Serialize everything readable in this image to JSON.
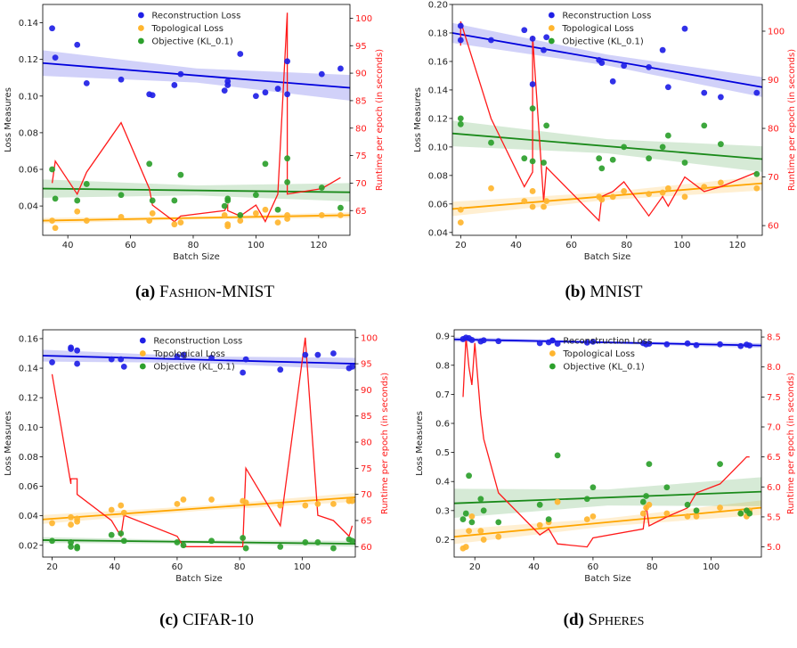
{
  "colors": {
    "reconstruction": "#1f1fe6",
    "topological": "#ffb52e",
    "objective": "#2ca02c",
    "runtime": "#ff1a1a",
    "recon_line": "#0000dd",
    "topo_line": "#ffa500",
    "obj_line": "#1a8a1a"
  },
  "chart_data": [
    {
      "type": "scatter",
      "caption_letter": "(a)",
      "caption_name": "Fashion-MNIST",
      "xlabel": "Batch Size",
      "ylabel": "Loss Measures",
      "y2label": "Runtime per epoch (in seconds)",
      "xlim": [
        32,
        130
      ],
      "ylim": [
        0.024,
        0.15
      ],
      "y2lim": [
        60.5,
        102.5
      ],
      "xticks": [
        40,
        60,
        80,
        100,
        120
      ],
      "yticks": [
        0.04,
        0.06,
        0.08,
        0.1,
        0.12,
        0.14
      ],
      "y2ticks": [
        65,
        70,
        75,
        80,
        85,
        90,
        95,
        100
      ],
      "legend": [
        "Reconstruction Loss",
        "Topological Loss",
        "Objective (KL_0.1)"
      ],
      "legend_position": "top-center",
      "series": [
        {
          "name": "Reconstruction Loss",
          "x": [
            35,
            36,
            43,
            46,
            57,
            66,
            67,
            74,
            76,
            90,
            91,
            91,
            95,
            100,
            103,
            107,
            110,
            110,
            121,
            127
          ],
          "y": [
            0.137,
            0.121,
            0.128,
            0.107,
            0.109,
            0.101,
            0.1005,
            0.106,
            0.112,
            0.103,
            0.106,
            0.108,
            0.123,
            0.1,
            0.102,
            0.104,
            0.101,
            0.119,
            0.112,
            0.115
          ]
        },
        {
          "name": "Topological Loss",
          "x": [
            35,
            36,
            43,
            46,
            57,
            66,
            67,
            74,
            76,
            90,
            91,
            91,
            95,
            100,
            103,
            107,
            110,
            110,
            121,
            127
          ],
          "y": [
            0.032,
            0.028,
            0.037,
            0.032,
            0.034,
            0.032,
            0.036,
            0.03,
            0.031,
            0.035,
            0.03,
            0.029,
            0.032,
            0.036,
            0.038,
            0.031,
            0.033,
            0.035,
            0.035,
            0.035
          ]
        },
        {
          "name": "Objective (KL_0.1)",
          "x": [
            35,
            36,
            43,
            46,
            57,
            66,
            67,
            74,
            76,
            90,
            91,
            91,
            95,
            100,
            103,
            107,
            110,
            110,
            121,
            127
          ],
          "y": [
            0.06,
            0.044,
            0.043,
            0.052,
            0.046,
            0.063,
            0.043,
            0.043,
            0.057,
            0.04,
            0.044,
            0.043,
            0.035,
            0.046,
            0.063,
            0.038,
            0.066,
            0.053,
            0.05,
            0.039
          ]
        }
      ],
      "fits": [
        {
          "name": "Reconstruction Loss",
          "x": [
            32,
            130
          ],
          "y": [
            0.118,
            0.1045
          ],
          "ci": 0.007
        },
        {
          "name": "Topological Loss",
          "x": [
            32,
            130
          ],
          "y": [
            0.032,
            0.035
          ],
          "ci": 0.0015
        },
        {
          "name": "Objective (KL_0.1)",
          "x": [
            32,
            130
          ],
          "y": [
            0.0495,
            0.0475
          ],
          "ci": 0.005
        }
      ],
      "runtime": {
        "x": [
          35,
          36,
          43,
          46,
          57,
          66,
          67,
          74,
          76,
          90,
          91,
          91,
          95,
          100,
          103,
          107,
          110,
          110,
          121,
          127
        ],
        "y": [
          70,
          74,
          68,
          72,
          81,
          69,
          66,
          63,
          64,
          65,
          66,
          65,
          64,
          66,
          63,
          68,
          101,
          68,
          69,
          71
        ]
      }
    },
    {
      "type": "scatter",
      "caption_letter": "(b)",
      "caption_name": "MNIST",
      "xlabel": "Batch Size",
      "ylabel": "Loss Measures",
      "y2label": "Runtime per epoch (in seconds)",
      "xlim": [
        17,
        129
      ],
      "ylim": [
        0.038,
        0.2
      ],
      "y2lim": [
        58,
        105.5
      ],
      "xticks": [
        20,
        40,
        60,
        80,
        100,
        120
      ],
      "yticks": [
        0.04,
        0.06,
        0.08,
        0.1,
        0.12,
        0.14,
        0.16,
        0.18,
        0.2
      ],
      "y2ticks": [
        60,
        70,
        80,
        90,
        100
      ],
      "legend": [
        "Reconstruction Loss",
        "Topological Loss",
        "Objective (KL_0.1)"
      ],
      "legend_position": "top-center",
      "series": [
        {
          "name": "Reconstruction Loss",
          "x": [
            20,
            20,
            31,
            43,
            46,
            46,
            50,
            51,
            70,
            71,
            75,
            79,
            88,
            93,
            95,
            101,
            108,
            114,
            127
          ],
          "y": [
            0.185,
            0.175,
            0.175,
            0.182,
            0.176,
            0.144,
            0.168,
            0.177,
            0.161,
            0.159,
            0.146,
            0.157,
            0.156,
            0.168,
            0.142,
            0.183,
            0.138,
            0.135,
            0.138
          ]
        },
        {
          "name": "Topological Loss",
          "x": [
            20,
            20,
            31,
            43,
            46,
            46,
            50,
            51,
            70,
            71,
            75,
            79,
            88,
            93,
            95,
            101,
            108,
            114,
            127
          ],
          "y": [
            0.056,
            0.047,
            0.071,
            0.062,
            0.069,
            0.058,
            0.058,
            0.062,
            0.065,
            0.063,
            0.065,
            0.069,
            0.067,
            0.068,
            0.071,
            0.065,
            0.072,
            0.075,
            0.071
          ]
        },
        {
          "name": "Objective (KL_0.1)",
          "x": [
            20,
            20,
            31,
            43,
            46,
            46,
            50,
            51,
            70,
            71,
            75,
            79,
            88,
            93,
            95,
            101,
            108,
            114,
            127
          ],
          "y": [
            0.12,
            0.116,
            0.103,
            0.092,
            0.127,
            0.09,
            0.089,
            0.115,
            0.092,
            0.085,
            0.091,
            0.1,
            0.092,
            0.1,
            0.108,
            0.089,
            0.115,
            0.102,
            0.081
          ]
        }
      ],
      "fits": [
        {
          "name": "Reconstruction Loss",
          "x": [
            17,
            129
          ],
          "y": [
            0.18,
            0.142
          ],
          "ci": 0.007
        },
        {
          "name": "Topological Loss",
          "x": [
            17,
            129
          ],
          "y": [
            0.0565,
            0.0745
          ],
          "ci": 0.005
        },
        {
          "name": "Objective (KL_0.1)",
          "x": [
            17,
            129
          ],
          "y": [
            0.1095,
            0.0915
          ],
          "ci": 0.009
        }
      ],
      "runtime": {
        "x": [
          20,
          20,
          31,
          43,
          46,
          46,
          50,
          51,
          70,
          71,
          75,
          79,
          88,
          93,
          95,
          101,
          108,
          114,
          127
        ],
        "y": [
          97,
          102,
          82,
          68,
          71,
          99,
          65,
          72,
          61,
          66,
          67,
          69,
          62,
          66,
          64,
          70,
          67,
          68,
          71
        ]
      }
    },
    {
      "type": "scatter",
      "caption_letter": "(c)",
      "caption_name": "CIFAR-10",
      "xlabel": "Batch Size",
      "ylabel": "Loss Measures",
      "y2label": "Runtime per epoch (in seconds)",
      "xlim": [
        17,
        117
      ],
      "ylim": [
        0.012,
        0.166
      ],
      "y2lim": [
        58,
        101.5
      ],
      "xticks": [
        20,
        40,
        60,
        80,
        100
      ],
      "yticks": [
        0.02,
        0.04,
        0.06,
        0.08,
        0.1,
        0.12,
        0.14,
        0.16
      ],
      "y2ticks": [
        60,
        65,
        70,
        75,
        80,
        85,
        90,
        95,
        100
      ],
      "legend": [
        "Reconstruction Loss",
        "Topological Loss",
        "Objective (KL_0.1)"
      ],
      "legend_position": "top-center",
      "series": [
        {
          "name": "Reconstruction Loss",
          "x": [
            20,
            26,
            26,
            28,
            28,
            39,
            42,
            43,
            60,
            62,
            71,
            81,
            82,
            93,
            101,
            105,
            110,
            115,
            116
          ],
          "y": [
            0.144,
            0.154,
            0.153,
            0.152,
            0.143,
            0.146,
            0.146,
            0.141,
            0.148,
            0.149,
            0.147,
            0.137,
            0.146,
            0.139,
            0.149,
            0.149,
            0.15,
            0.14,
            0.141
          ]
        },
        {
          "name": "Topological Loss",
          "x": [
            20,
            26,
            26,
            28,
            28,
            39,
            42,
            43,
            60,
            62,
            71,
            81,
            82,
            93,
            101,
            105,
            110,
            115,
            116
          ],
          "y": [
            0.035,
            0.034,
            0.039,
            0.036,
            0.038,
            0.044,
            0.047,
            0.042,
            0.048,
            0.051,
            0.051,
            0.05,
            0.049,
            0.047,
            0.047,
            0.048,
            0.048,
            0.05,
            0.05
          ]
        },
        {
          "name": "Objective (KL_0.1)",
          "x": [
            20,
            26,
            26,
            28,
            28,
            39,
            42,
            43,
            60,
            62,
            71,
            81,
            82,
            93,
            101,
            105,
            110,
            115,
            116
          ],
          "y": [
            0.023,
            0.022,
            0.019,
            0.019,
            0.018,
            0.027,
            0.028,
            0.023,
            0.022,
            0.02,
            0.023,
            0.025,
            0.018,
            0.019,
            0.022,
            0.022,
            0.018,
            0.024,
            0.023
          ]
        }
      ],
      "fits": [
        {
          "name": "Reconstruction Loss",
          "x": [
            17,
            117
          ],
          "y": [
            0.1485,
            0.143
          ],
          "ci": 0.004
        },
        {
          "name": "Topological Loss",
          "x": [
            17,
            117
          ],
          "y": [
            0.0375,
            0.0525
          ],
          "ci": 0.003
        },
        {
          "name": "Objective (KL_0.1)",
          "x": [
            17,
            117
          ],
          "y": [
            0.0235,
            0.021
          ],
          "ci": 0.002
        }
      ],
      "runtime": {
        "x": [
          20,
          26,
          26,
          28,
          28,
          39,
          42,
          43,
          60,
          62,
          71,
          81,
          82,
          93,
          101,
          105,
          110,
          115,
          116
        ],
        "y": [
          93,
          72,
          73,
          73,
          70,
          65,
          62,
          66,
          62,
          60,
          60,
          60,
          75,
          64,
          100,
          66,
          65,
          62,
          64
        ]
      }
    },
    {
      "type": "scatter",
      "caption_letter": "(d)",
      "caption_name": "Spheres",
      "xlabel": "Batch Size",
      "ylabel": "Loss Measures",
      "y2label": "Runtime per epoch (in seconds)",
      "xlim": [
        13,
        117
      ],
      "ylim": [
        0.14,
        0.922
      ],
      "y2lim": [
        4.83,
        8.62
      ],
      "xticks": [
        20,
        40,
        60,
        80,
        100
      ],
      "yticks": [
        0.2,
        0.3,
        0.4,
        0.5,
        0.6,
        0.7,
        0.8,
        0.9
      ],
      "y2ticks": [
        5.0,
        5.5,
        6.0,
        6.5,
        7.0,
        7.5,
        8.0,
        8.5
      ],
      "legend": [
        "Reconstruction Loss",
        "Topological Loss",
        "Objective (KL_0.1)"
      ],
      "legend_position": "top-center",
      "series": [
        {
          "name": "Reconstruction Loss",
          "x": [
            16,
            17,
            18,
            19,
            22,
            23,
            28,
            42,
            45,
            48,
            58,
            60,
            77,
            78,
            79,
            85,
            92,
            95,
            103,
            110,
            112,
            113
          ],
          "y": [
            0.89,
            0.895,
            0.893,
            0.887,
            0.882,
            0.886,
            0.883,
            0.876,
            0.879,
            0.874,
            0.878,
            0.881,
            0.876,
            0.872,
            0.874,
            0.872,
            0.875,
            0.869,
            0.872,
            0.866,
            0.871,
            0.868
          ]
        },
        {
          "name": "Topological Loss",
          "x": [
            16,
            17,
            18,
            19,
            22,
            23,
            28,
            42,
            45,
            48,
            58,
            60,
            77,
            78,
            79,
            85,
            92,
            95,
            103,
            110,
            112,
            113
          ],
          "y": [
            0.17,
            0.175,
            0.23,
            0.28,
            0.23,
            0.2,
            0.21,
            0.25,
            0.26,
            0.33,
            0.27,
            0.28,
            0.29,
            0.31,
            0.32,
            0.29,
            0.28,
            0.28,
            0.31,
            0.29,
            0.28,
            0.3
          ]
        },
        {
          "name": "Objective (KL_0.1)",
          "x": [
            16,
            17,
            18,
            19,
            22,
            23,
            28,
            42,
            45,
            48,
            58,
            60,
            77,
            78,
            79,
            85,
            92,
            95,
            103,
            110,
            112,
            113
          ],
          "y": [
            0.27,
            0.29,
            0.42,
            0.26,
            0.34,
            0.3,
            0.26,
            0.32,
            0.27,
            0.49,
            0.34,
            0.38,
            0.33,
            0.35,
            0.46,
            0.38,
            0.32,
            0.3,
            0.46,
            0.29,
            0.3,
            0.29
          ]
        }
      ],
      "fits": [
        {
          "name": "Reconstruction Loss",
          "x": [
            13,
            117
          ],
          "y": [
            0.889,
            0.868
          ],
          "ci": 0.008
        },
        {
          "name": "Topological Loss",
          "x": [
            13,
            117
          ],
          "y": [
            0.21,
            0.31
          ],
          "ci": 0.025
        },
        {
          "name": "Objective (KL_0.1)",
          "x": [
            13,
            117
          ],
          "y": [
            0.325,
            0.365
          ],
          "ci": 0.05
        }
      ],
      "runtime": {
        "x": [
          16,
          17,
          18,
          19,
          20,
          22,
          23,
          28,
          42,
          45,
          48,
          58,
          60,
          77,
          78,
          79,
          85,
          92,
          95,
          103,
          110,
          112,
          113
        ],
        "y": [
          7.5,
          8.5,
          8.0,
          7.7,
          8.4,
          7.2,
          6.8,
          5.9,
          5.2,
          5.3,
          5.05,
          5.0,
          5.15,
          5.3,
          5.7,
          5.35,
          5.5,
          5.65,
          5.9,
          6.05,
          6.4,
          6.5,
          6.5
        ]
      }
    }
  ]
}
